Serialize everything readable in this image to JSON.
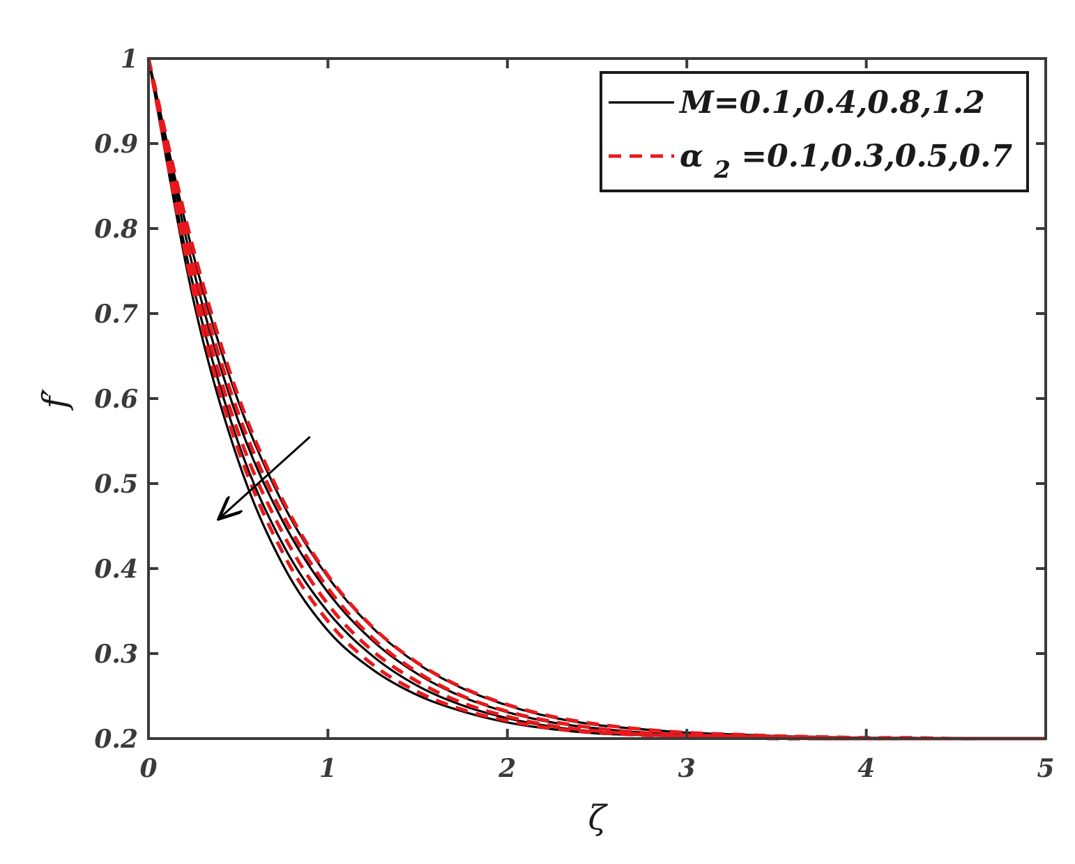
{
  "chart_data": {
    "type": "line",
    "title": "",
    "xlabel": "ζ",
    "ylabel": "f′",
    "xlim": [
      0,
      5
    ],
    "ylim": [
      0.2,
      1
    ],
    "grid": false,
    "legend_position": "top-right",
    "x_ticks": [
      "0",
      "1",
      "2",
      "3",
      "4",
      "5"
    ],
    "y_ticks": [
      "0.2",
      "0.3",
      "0.4",
      "0.5",
      "0.6",
      "0.7",
      "0.8",
      "0.9",
      "1"
    ],
    "x": [
      0,
      0.25,
      0.5,
      0.75,
      1,
      1.25,
      1.5,
      1.75,
      2,
      2.25,
      2.5,
      2.75,
      3,
      3.25,
      3.5,
      3.75,
      4,
      4.25,
      4.5,
      4.75,
      5
    ],
    "legend": [
      {
        "text_main": "M=0.1,0.4,0.8,1.2",
        "text_sub": "",
        "text_after": "",
        "color": "#000000",
        "dash": "solid"
      },
      {
        "text_main": "α",
        "text_sub": "2",
        "text_after": "=0.1,0.3,0.5,0.7",
        "color": "#e8191d",
        "dash": "dashed"
      }
    ],
    "series_groups": [
      {
        "group": "M",
        "color": "#000000",
        "dash": "solid",
        "series": [
          {
            "values": [
              1,
              0.769,
              0.597,
              0.476,
              0.39,
              0.33,
              0.288,
              0.259,
              0.239,
              0.225,
              0.216,
              0.211,
              0.207,
              0.205,
              0.203,
              0.202,
              0.201,
              0.201,
              0.2,
              0.2,
              0.2
            ]
          },
          {
            "values": [
              1,
              0.752,
              0.574,
              0.455,
              0.372,
              0.315,
              0.276,
              0.249,
              0.231,
              0.219,
              0.212,
              0.207,
              0.204,
              0.203,
              0.202,
              0.201,
              0.2,
              0.2,
              0.2,
              0.2,
              0.2
            ]
          },
          {
            "values": [
              1,
              0.732,
              0.548,
              0.428,
              0.349,
              0.297,
              0.262,
              0.239,
              0.224,
              0.214,
              0.208,
              0.205,
              0.203,
              0.202,
              0.201,
              0.2,
              0.2,
              0.2,
              0.2,
              0.2,
              0.2
            ]
          },
          {
            "values": [
              1,
              0.716,
              0.527,
              0.404,
              0.327,
              0.281,
              0.251,
              0.232,
              0.219,
              0.211,
              0.206,
              0.204,
              0.202,
              0.201,
              0.2,
              0.2,
              0.2,
              0.2,
              0.2,
              0.2,
              0.2
            ]
          }
        ]
      },
      {
        "group": "α2",
        "color": "#e8191d",
        "dash": "dashed",
        "series": [
          {
            "values": [
              1,
              0.776,
              0.603,
              0.48,
              0.392,
              0.331,
              0.289,
              0.26,
              0.24,
              0.226,
              0.217,
              0.211,
              0.207,
              0.205,
              0.203,
              0.202,
              0.201,
              0.201,
              0.2,
              0.2,
              0.2
            ]
          },
          {
            "values": [
              1,
              0.758,
              0.583,
              0.463,
              0.377,
              0.318,
              0.278,
              0.25,
              0.232,
              0.22,
              0.212,
              0.207,
              0.204,
              0.203,
              0.202,
              0.201,
              0.2,
              0.2,
              0.2,
              0.2,
              0.2
            ]
          },
          {
            "values": [
              1,
              0.741,
              0.56,
              0.441,
              0.358,
              0.303,
              0.267,
              0.242,
              0.226,
              0.215,
              0.209,
              0.205,
              0.203,
              0.202,
              0.201,
              0.2,
              0.2,
              0.2,
              0.2,
              0.2,
              0.2
            ]
          },
          {
            "values": [
              1,
              0.726,
              0.54,
              0.418,
              0.338,
              0.287,
              0.255,
              0.234,
              0.221,
              0.212,
              0.207,
              0.204,
              0.202,
              0.201,
              0.2,
              0.2,
              0.2,
              0.2,
              0.2,
              0.2,
              0.2
            ]
          }
        ]
      }
    ],
    "annotation": {
      "type": "arrow",
      "from": [
        0.9,
        0.555
      ],
      "to": [
        0.4,
        0.46
      ],
      "color": "#000000"
    }
  }
}
